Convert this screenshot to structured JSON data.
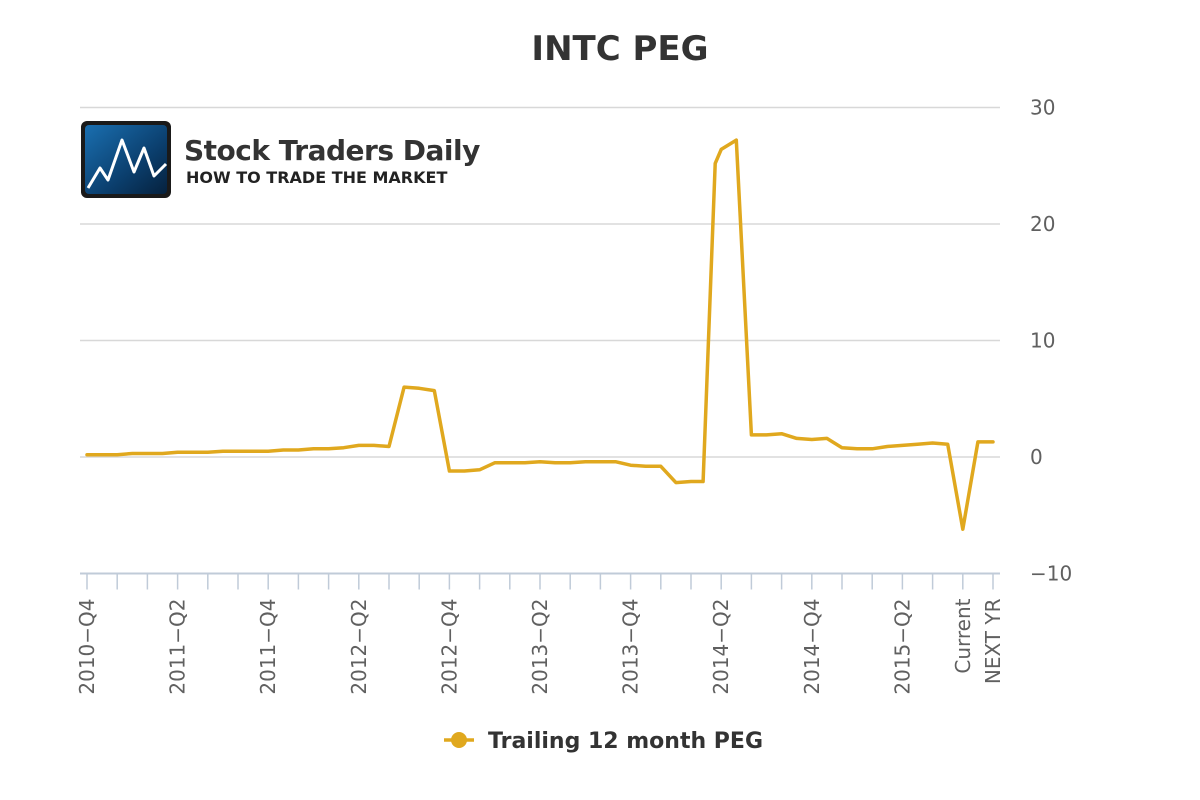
{
  "chart_data": {
    "type": "line",
    "title": "INTC PEG",
    "xlabel": "",
    "ylabel": "",
    "ylim": [
      -10,
      30
    ],
    "yticks": [
      "30",
      "20",
      "10",
      "0",
      "−10"
    ],
    "ytick_values": [
      30,
      20,
      10,
      0,
      -10
    ],
    "grid": true,
    "legend_position": "bottom-center",
    "categories": [
      "2010−Q4",
      "",
      "",
      "2011−Q2",
      "",
      "",
      "2011−Q4",
      "",
      "",
      "2012−Q2",
      "",
      "",
      "2012−Q4",
      "",
      "",
      "2013−Q2",
      "",
      "",
      "2013−Q4",
      "",
      "",
      "2014−Q2",
      "",
      "",
      "2014−Q4",
      "",
      "",
      "2015−Q2",
      "",
      "Current",
      "NEXT YR"
    ],
    "series": [
      {
        "name": "Trailing 12 month PEG",
        "color": "#E0A81E",
        "x": [
          0,
          0.5,
          1,
          1.5,
          2,
          2.5,
          3,
          3.5,
          4,
          4.5,
          5,
          5.5,
          6,
          6.5,
          7,
          7.5,
          8,
          8.5,
          9,
          9.5,
          10,
          10.5,
          11,
          11.5,
          12,
          12.5,
          13,
          13.5,
          14,
          14.5,
          15,
          15.5,
          16,
          16.5,
          17,
          17.5,
          18,
          18.5,
          19,
          19.5,
          20,
          20.4,
          20.8,
          21,
          21.5,
          22,
          22.5,
          23,
          23.5,
          24,
          24.5,
          25,
          25.5,
          26,
          26.5,
          27,
          27.5,
          28,
          28.5,
          29,
          29.5,
          30
        ],
        "values": [
          0.2,
          0.2,
          0.2,
          0.3,
          0.3,
          0.3,
          0.4,
          0.4,
          0.4,
          0.5,
          0.5,
          0.5,
          0.5,
          0.6,
          0.6,
          0.7,
          0.7,
          0.8,
          1.0,
          1.0,
          0.9,
          6.0,
          5.9,
          5.7,
          -1.2,
          -1.2,
          -1.1,
          -0.5,
          -0.5,
          -0.5,
          -0.4,
          -0.5,
          -0.5,
          -0.4,
          -0.4,
          -0.4,
          -0.7,
          -0.8,
          -0.8,
          -2.2,
          -2.1,
          -2.1,
          25.2,
          26.4,
          27.2,
          1.9,
          1.9,
          2.0,
          1.6,
          1.5,
          1.6,
          0.8,
          0.7,
          0.7,
          0.9,
          1.0,
          1.1,
          1.2,
          1.1,
          -6.2,
          1.3,
          1.3
        ]
      }
    ]
  },
  "logo": {
    "title": "Stock Traders Daily",
    "subtitle": "HOW TO TRADE THE MARKET"
  }
}
